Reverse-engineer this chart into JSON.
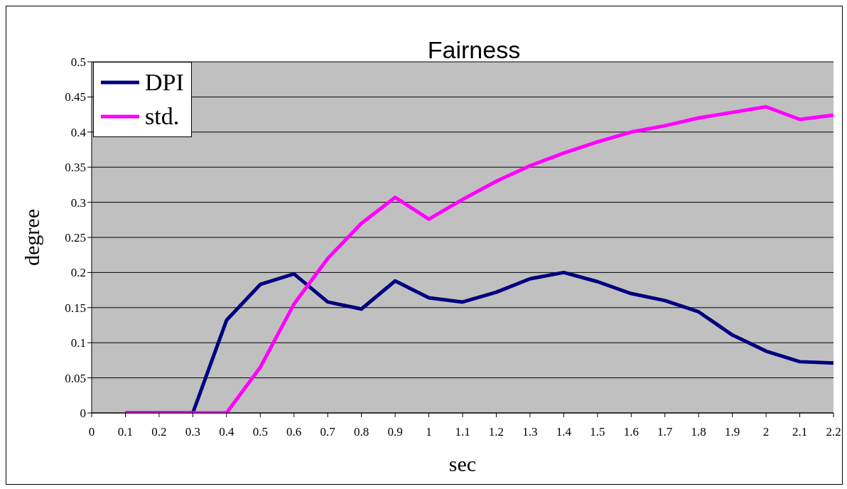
{
  "chart_data": {
    "type": "line",
    "title": "Fairness",
    "xlabel": "sec",
    "ylabel": "degree",
    "categories": [
      "0",
      "0.1",
      "0.2",
      "0.3",
      "0.4",
      "0.5",
      "0.6",
      "0.7",
      "0.8",
      "0.9",
      "1",
      "1.1",
      "1.2",
      "1.3",
      "1.4",
      "1.5",
      "1.6",
      "1.7",
      "1.8",
      "1.9",
      "2",
      "2.1",
      "2.2"
    ],
    "series": [
      {
        "name": "DPI",
        "color": "#000080",
        "values": [
          null,
          0,
          0,
          0,
          0.132,
          0.183,
          0.198,
          0.158,
          0.148,
          0.188,
          0.164,
          0.158,
          0.172,
          0.191,
          0.2,
          0.187,
          0.17,
          0.16,
          0.144,
          0.111,
          0.088,
          0.073,
          0.071
        ]
      },
      {
        "name": "std.",
        "color": "#ff00ff",
        "values": [
          null,
          0,
          0,
          0,
          0,
          0.065,
          0.155,
          0.22,
          0.27,
          0.307,
          0.276,
          0.304,
          0.33,
          0.352,
          0.37,
          0.386,
          0.4,
          0.409,
          0.42,
          0.428,
          0.436,
          0.418,
          0.424
        ]
      }
    ],
    "ylim": [
      0,
      0.5
    ],
    "yticks": [
      0,
      0.05,
      0.1,
      0.15,
      0.2,
      0.25,
      0.3,
      0.35,
      0.4,
      0.45,
      0.5
    ],
    "grid": "y",
    "legend": "top left",
    "marker": "none",
    "line_style": "solid"
  }
}
